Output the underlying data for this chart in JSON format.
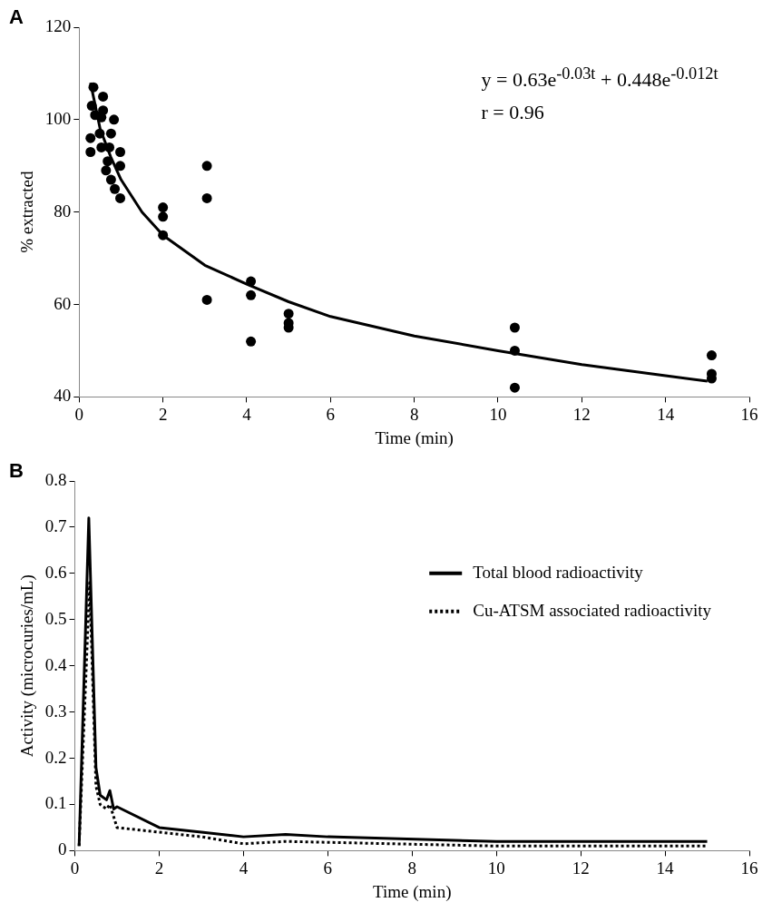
{
  "chart_data": [
    {
      "type": "scatter",
      "xlabel": "Time (min)",
      "ylabel": "% extracted",
      "annotations": [
        "A",
        "y = 0.63e$^{-0.03t}$ + 0.448e$^{-0.012t}$",
        "r = 0.96"
      ],
      "xlim": [
        0,
        16
      ],
      "xticks": [
        0,
        2,
        4,
        6,
        8,
        10,
        12,
        14,
        16
      ],
      "ylim": [
        40,
        120
      ],
      "yticks": [
        40,
        60,
        80,
        100,
        120
      ],
      "grid": false,
      "legend": false,
      "series": [
        {
          "marker": "circle",
          "color": "#000000",
          "x": [
            0.34,
            0.3,
            0.57,
            0.57,
            0.38,
            0.53,
            0.83,
            0.49,
            0.76,
            0.27,
            0.53,
            0.72,
            0.98,
            0.27,
            0.68,
            0.98,
            0.64,
            0.76,
            0.85,
            0.98,
            2,
            2,
            2,
            3.05,
            3.05,
            3.05,
            4.1,
            4.1,
            4.1,
            5,
            5,
            5,
            10.4,
            10.4,
            10.4,
            15.1,
            15.1,
            15.1
          ],
          "values": [
            107,
            103,
            105,
            102,
            101,
            100.5,
            100,
            97,
            97,
            96,
            94,
            94,
            93,
            93,
            91,
            90,
            89,
            87,
            85,
            83,
            81,
            79,
            75,
            90,
            83,
            61,
            65,
            62,
            52,
            58,
            56,
            55,
            55,
            50,
            42,
            49,
            45,
            44
          ]
        },
        {
          "type": "line",
          "marker": "none",
          "color": "#000000",
          "line_style": "solid",
          "x": [
            0.27,
            0.5,
            0.75,
            1,
            1.5,
            2,
            3,
            4,
            5,
            6,
            8,
            10,
            12,
            14,
            15
          ],
          "values": [
            108,
            98,
            92,
            87,
            80,
            75,
            68.5,
            64.4,
            60.6,
            57.4,
            53.2,
            50,
            47,
            44.6,
            43.4
          ]
        }
      ]
    },
    {
      "type": "line",
      "xlabel": "Time (min)",
      "ylabel": "Activity (microcuries/mL)",
      "annotations": [
        "B"
      ],
      "xlim": [
        0,
        16
      ],
      "xticks": [
        0,
        2,
        4,
        6,
        8,
        10,
        12,
        14,
        16
      ],
      "ylim": [
        0,
        0.8
      ],
      "yticks": [
        0,
        0.1,
        0.2,
        0.3,
        0.4,
        0.5,
        0.6,
        0.7,
        0.8
      ],
      "grid": false,
      "legend": "top right",
      "series": [
        {
          "name": "Total blood radioactivity",
          "color": "#000000",
          "line_style": "solid",
          "x": [
            0.1,
            0.33,
            0.5,
            0.6,
            0.75,
            0.83,
            0.92,
            1,
            2,
            3,
            4,
            5,
            6,
            10,
            15
          ],
          "values": [
            0.01,
            0.72,
            0.18,
            0.12,
            0.11,
            0.13,
            0.09,
            0.095,
            0.05,
            0.04,
            0.03,
            0.035,
            0.03,
            0.02,
            0.02
          ]
        },
        {
          "name": "Cu-ATSM associated radioactivity",
          "color": "#000000",
          "line_style": "dotted",
          "x": [
            0.1,
            0.35,
            0.5,
            0.6,
            0.75,
            0.83,
            1,
            2,
            3,
            4,
            5,
            10,
            15
          ],
          "values": [
            0.01,
            0.58,
            0.14,
            0.1,
            0.09,
            0.1,
            0.05,
            0.04,
            0.03,
            0.015,
            0.02,
            0.01,
            0.01
          ]
        }
      ]
    }
  ]
}
